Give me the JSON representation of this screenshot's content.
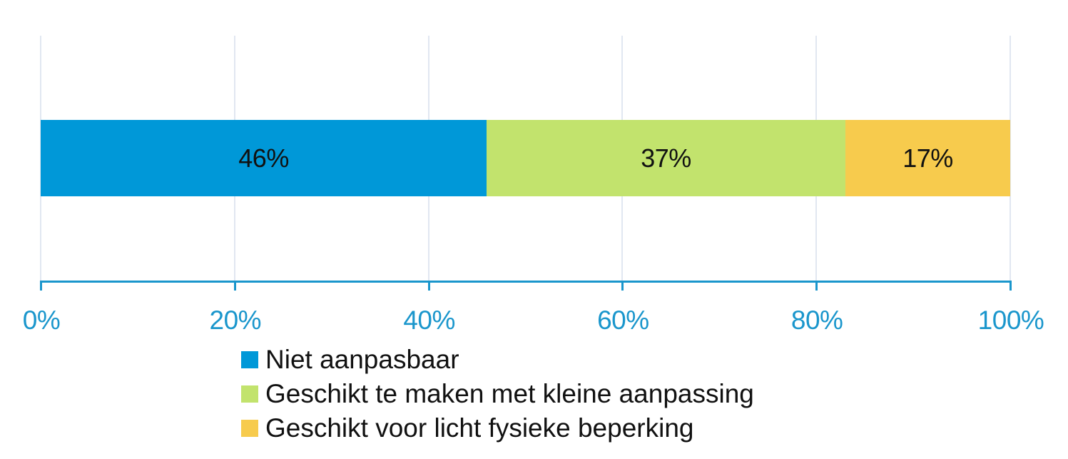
{
  "chart_data": {
    "type": "bar",
    "orientation": "horizontal",
    "stacked": true,
    "normalized": true,
    "title": "",
    "xlabel": "",
    "ylabel": "",
    "xlim": [
      0,
      100
    ],
    "grid": true,
    "legend_position": "bottom",
    "categories": [
      ""
    ],
    "x_ticks": [
      "0%",
      "20%",
      "40%",
      "60%",
      "80%",
      "100%"
    ],
    "series": [
      {
        "name": "Niet aanpasbaar",
        "values": [
          46
        ],
        "label": "46%",
        "color": "#0098d8"
      },
      {
        "name": "Geschikt te maken met kleine aanpassing",
        "values": [
          37
        ],
        "label": "37%",
        "color": "#c2e36d"
      },
      {
        "name": "Geschikt voor licht fysieke beperking",
        "values": [
          17
        ],
        "label": "17%",
        "color": "#f7cb4d"
      }
    ]
  },
  "colors": {
    "axis": "#1a96cc",
    "grid": "#e1e7f1",
    "label_text": "#111111"
  }
}
